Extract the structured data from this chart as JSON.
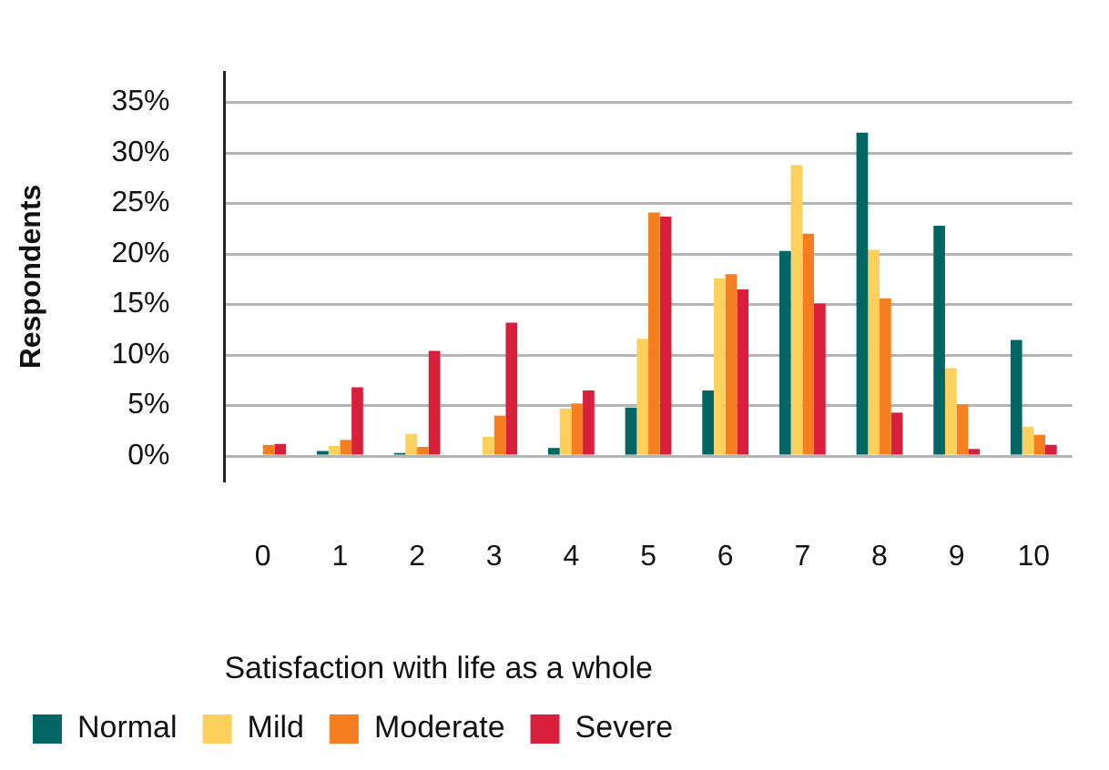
{
  "chart_data": {
    "type": "bar",
    "xlabel": "Satisfaction with life as a whole",
    "ylabel": "Respondents",
    "categories": [
      "0",
      "1",
      "2",
      "3",
      "4",
      "5",
      "6",
      "7",
      "8",
      "9",
      "10"
    ],
    "series": [
      {
        "name": "Normal",
        "color": "#046664",
        "values": [
          0,
          0.5,
          0.3,
          0,
          0.8,
          4.8,
          6.5,
          20.3,
          32.0,
          22.8,
          11.5
        ]
      },
      {
        "name": "Mild",
        "color": "#fdd05c",
        "values": [
          0,
          1.0,
          2.2,
          1.9,
          4.7,
          11.6,
          17.6,
          28.8,
          20.4,
          8.7,
          2.9
        ]
      },
      {
        "name": "Moderate",
        "color": "#f47e20",
        "values": [
          1.1,
          1.6,
          0.9,
          4.0,
          5.2,
          24.1,
          18.0,
          22.0,
          15.6,
          5.1,
          2.1
        ]
      },
      {
        "name": "Severe",
        "color": "#d8203c",
        "values": [
          1.2,
          6.8,
          10.4,
          13.2,
          6.5,
          23.7,
          16.5,
          15.1,
          4.3,
          0.7,
          1.1
        ]
      }
    ],
    "ylim": [
      -2.5,
      38
    ],
    "yticks": [
      {
        "value": 0,
        "label": "0%"
      },
      {
        "value": 5,
        "label": "5%"
      },
      {
        "value": 10,
        "label": "10%"
      },
      {
        "value": 15,
        "label": "15%"
      },
      {
        "value": 20,
        "label": "20%"
      },
      {
        "value": 25,
        "label": "25%"
      },
      {
        "value": 30,
        "label": "30%"
      },
      {
        "value": 35,
        "label": "35%"
      }
    ],
    "grid": "y",
    "legend": "bottom"
  }
}
